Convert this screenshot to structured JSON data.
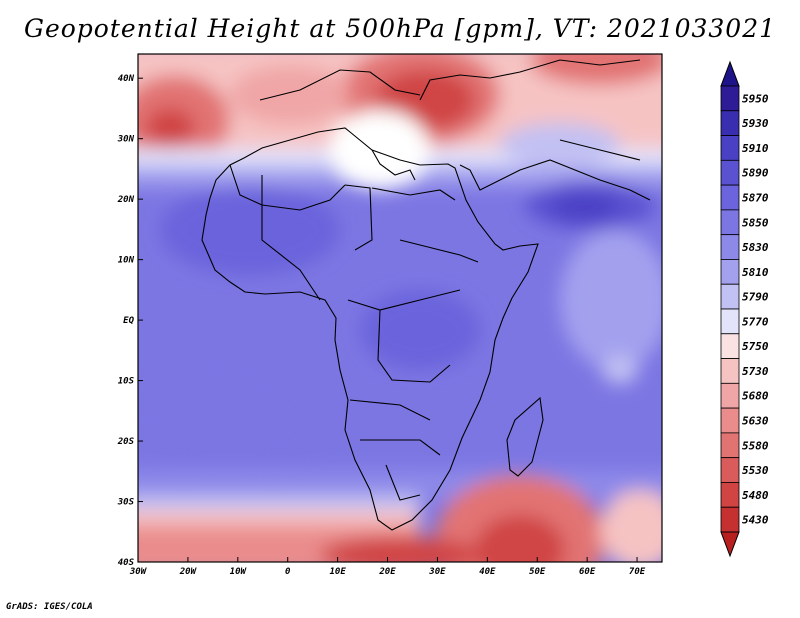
{
  "title": "Geopotential Height at 500hPa [gpm], VT: 2021033021",
  "footer": "GrADS: IGES/COLA",
  "map": {
    "lon_labels": [
      "30W",
      "20W",
      "10W",
      "0",
      "10E",
      "20E",
      "30E",
      "40E",
      "50E",
      "60E",
      "70E"
    ],
    "lat_labels": [
      "40N",
      "30N",
      "20N",
      "10N",
      "EQ",
      "10S",
      "20S",
      "30S",
      "40S"
    ],
    "lon_range": [
      -30,
      75
    ],
    "lat_range": [
      -40,
      44
    ]
  },
  "colorbar": {
    "levels": [
      {
        "label": "5950",
        "color": "#2d1c96"
      },
      {
        "label": "5930",
        "color": "#3a2eb0"
      },
      {
        "label": "5910",
        "color": "#4a40c4"
      },
      {
        "label": "5890",
        "color": "#5b52d2"
      },
      {
        "label": "5870",
        "color": "#6b64dc"
      },
      {
        "label": "5850",
        "color": "#7c76e3"
      },
      {
        "label": "5830",
        "color": "#8d89e9"
      },
      {
        "label": "5810",
        "color": "#a3a1ee"
      },
      {
        "label": "5790",
        "color": "#c2c1f3"
      },
      {
        "label": "5770",
        "color": "#e3e3fa"
      },
      {
        "label": "5750",
        "color": "#fbe2e2"
      },
      {
        "label": "5730",
        "color": "#f6c3c3"
      },
      {
        "label": "5680",
        "color": "#f0a6a6"
      },
      {
        "label": "5630",
        "color": "#ea8c8c"
      },
      {
        "label": "5580",
        "color": "#e27373"
      },
      {
        "label": "5530",
        "color": "#da5b5b"
      },
      {
        "label": "5480",
        "color": "#d04444"
      },
      {
        "label": "5430",
        "color": "#c53030"
      }
    ],
    "top_arrow_color": "#1f138a",
    "bottom_arrow_color": "#b81f1f"
  }
}
